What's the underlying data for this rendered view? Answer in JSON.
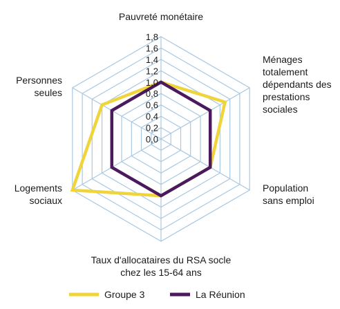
{
  "chart_data": {
    "type": "radar",
    "axes": [
      [
        "Pauvreté monétaire"
      ],
      [
        "Ménages",
        "totalement",
        "dépendants des",
        "prestations",
        "sociales"
      ],
      [
        "Population",
        "sans emploi"
      ],
      [
        "Taux d'allocataires du RSA socle",
        "chez les 15-64 ans"
      ],
      [
        "Logements",
        "sociaux"
      ],
      [
        "Personnes",
        "seules"
      ]
    ],
    "ticks": [
      "0,0",
      "0,2",
      "0,4",
      "0,6",
      "0,8",
      "1,0",
      "1,2",
      "1,4",
      "1,6",
      "1,8"
    ],
    "tick_values": [
      0,
      0.2,
      0.4,
      0.6,
      0.8,
      1.0,
      1.2,
      1.4,
      1.6,
      1.8
    ],
    "range": [
      0,
      1.8
    ],
    "grid": true,
    "series": [
      {
        "name": "Groupe 3",
        "color": "#f0d43c",
        "values": [
          1.0,
          1.3,
          1.0,
          1.0,
          1.8,
          1.2
        ]
      },
      {
        "name": "La Réunion",
        "color": "#4b1a5e",
        "values": [
          1.0,
          1.0,
          1.0,
          1.0,
          1.0,
          1.0
        ]
      }
    ],
    "legend_position": "bottom",
    "grid_color": "#a9c8e2"
  }
}
